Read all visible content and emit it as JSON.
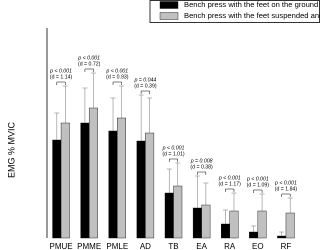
{
  "chart_data": {
    "type": "bar",
    "y_label": "EMG % MVIC",
    "categories": [
      "PMUE",
      "PMME",
      "PMLE",
      "AD",
      "TB",
      "EA",
      "RA",
      "EO",
      "RF"
    ],
    "series": [
      {
        "name": "Bench press with the feet on the ground",
        "color": "#000000",
        "values": [
          24.5,
          28.75,
          26.75,
          24.25,
          11.25,
          7.5,
          3.5,
          1.5,
          0.5
        ],
        "errors": [
          6.75,
          8.75,
          8.25,
          11.5,
          6,
          8,
          3.5,
          1.5,
          1
        ]
      },
      {
        "name": "Bench press with the feet suspended and hips flexed",
        "color": "#c0c0c0",
        "values": [
          28.75,
          32.5,
          30,
          26.25,
          13,
          8.25,
          6.75,
          6.75,
          6.25
        ],
        "errors": [
          9.25,
          8.75,
          8,
          8.75,
          5.75,
          5.5,
          4.5,
          4.25,
          3.75
        ]
      }
    ],
    "annotations": [
      {
        "p": "p < 0.001",
        "d": "(d = 1.14)"
      },
      {
        "p": "p < 0.001",
        "d": "(d = 0.72)"
      },
      {
        "p": "p < 0.001",
        "d": "(d = 0.93)"
      },
      {
        "p": "p = 0.044",
        "d": "(d = 0.39)"
      },
      {
        "p": "p < 0.001",
        "d": "(d = 1.01)"
      },
      {
        "p": "p = 0.008",
        "d": "(d = 0.38)"
      },
      {
        "p": "p < 0.001",
        "d": "(d = 1.17)"
      },
      {
        "p": "p < 0.001",
        "d": "(d = 1.09)"
      },
      {
        "p": "p < 0.001",
        "d": "(d = 1.84)"
      }
    ],
    "ylim": [
      0,
      50
    ]
  }
}
